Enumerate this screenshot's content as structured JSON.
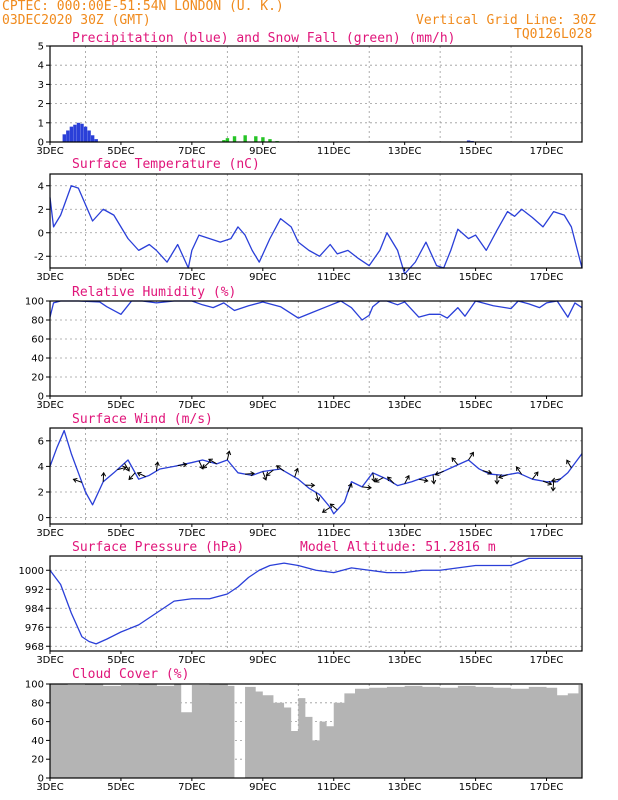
{
  "header": {
    "line1": "CPTEC:   000:00E-51:54N   LONDON (U. K.)",
    "line2": "03DEC2020 30Z (GMT)",
    "grid_note": "Vertical Grid Line: 30Z",
    "code": "TQ0126L028"
  },
  "colors": {
    "header": "#f08a1c",
    "title": "#e0157a",
    "line": "#2a3fd8",
    "snow": "#26c426",
    "cloud": "#b4b4b4"
  },
  "chart_data": [
    {
      "type": "bar",
      "title": "Precipitation (blue) and Snow Fall (green) (mm/h)",
      "x_categories": [
        "3DEC",
        "5DEC",
        "7DEC",
        "9DEC",
        "11DEC",
        "13DEC",
        "15DEC",
        "17DEC"
      ],
      "ylim": [
        0,
        5
      ],
      "yticks": [
        "0",
        "1",
        "2",
        "3",
        "4",
        "5"
      ],
      "grid": true,
      "x": [
        3.4,
        3.5,
        3.6,
        3.7,
        3.8,
        3.9,
        4.0,
        4.1,
        4.2,
        4.3,
        7.9,
        8.0,
        8.2,
        8.5,
        8.8,
        9.0,
        9.2,
        9.4,
        14.8,
        14.9
      ],
      "series": [
        {
          "name": "Precipitation",
          "color": "#2a3fd8",
          "values": [
            0.4,
            0.6,
            0.8,
            0.9,
            1.0,
            0.95,
            0.8,
            0.6,
            0.35,
            0.15,
            0,
            0,
            0,
            0,
            0,
            0,
            0,
            0,
            0.08,
            0.05
          ]
        },
        {
          "name": "Snow Fall",
          "color": "#26c426",
          "values": [
            0,
            0,
            0,
            0,
            0,
            0,
            0,
            0,
            0,
            0,
            0.1,
            0.2,
            0.3,
            0.35,
            0.3,
            0.25,
            0.15,
            0.05,
            0,
            0
          ]
        }
      ]
    },
    {
      "type": "line",
      "title": "Surface Temperature (nC)",
      "x_categories": [
        "3DEC",
        "5DEC",
        "7DEC",
        "9DEC",
        "11DEC",
        "13DEC",
        "15DEC",
        "17DEC"
      ],
      "ylim": [
        -3,
        5
      ],
      "yticks": [
        "-2",
        "0",
        "2",
        "4"
      ],
      "grid": true,
      "series": [
        {
          "x": [
            3.0,
            3.1,
            3.3,
            3.6,
            3.8,
            4.2,
            4.5,
            4.8,
            5.0,
            5.2,
            5.5,
            5.8,
            6.0,
            6.3,
            6.6,
            6.9,
            7.0,
            7.2,
            7.5,
            7.8,
            8.1,
            8.3,
            8.5,
            8.7,
            8.9,
            9.2,
            9.5,
            9.8,
            10.0,
            10.3,
            10.6,
            10.9,
            11.1,
            11.4,
            11.7,
            12.0,
            12.3,
            12.5,
            12.8,
            13.0,
            13.3,
            13.6,
            13.9,
            14.1,
            14.3,
            14.5,
            14.8,
            15.0,
            15.3,
            15.6,
            15.9,
            16.1,
            16.3,
            16.6,
            16.9,
            17.2,
            17.5,
            17.7,
            18.0
          ],
          "y": [
            3.0,
            0.5,
            1.5,
            4.0,
            3.8,
            1.0,
            2.0,
            1.5,
            0.5,
            -0.5,
            -1.5,
            -1.0,
            -1.5,
            -2.5,
            -1.0,
            -3.0,
            -1.5,
            -0.2,
            -0.5,
            -0.8,
            -0.5,
            0.5,
            -0.2,
            -1.5,
            -2.5,
            -0.5,
            1.2,
            0.5,
            -0.8,
            -1.5,
            -2.0,
            -1.0,
            -1.8,
            -1.5,
            -2.2,
            -2.8,
            -1.5,
            0.0,
            -1.5,
            -3.5,
            -2.5,
            -0.8,
            -2.8,
            -3.0,
            -1.5,
            0.3,
            -0.5,
            -0.2,
            -1.5,
            0.2,
            1.8,
            1.4,
            2.0,
            1.3,
            0.5,
            1.8,
            1.5,
            0.5,
            -3.0
          ]
        }
      ]
    },
    {
      "type": "line",
      "title": "Relative Humidity (%)",
      "x_categories": [
        "3DEC",
        "5DEC",
        "7DEC",
        "9DEC",
        "11DEC",
        "13DEC",
        "15DEC",
        "17DEC"
      ],
      "ylim": [
        0,
        100
      ],
      "yticks": [
        "0",
        "20",
        "40",
        "60",
        "80",
        "100"
      ],
      "grid": true,
      "series": [
        {
          "x": [
            3.0,
            3.1,
            3.3,
            3.8,
            4.4,
            4.6,
            5.0,
            5.3,
            5.6,
            6.0,
            6.5,
            7.0,
            7.3,
            7.6,
            7.9,
            8.2,
            8.6,
            9.0,
            9.5,
            10.0,
            10.4,
            10.8,
            11.2,
            11.5,
            11.8,
            12.0,
            12.1,
            12.3,
            12.5,
            12.8,
            13.0,
            13.4,
            13.7,
            14.0,
            14.2,
            14.5,
            14.7,
            15.0,
            15.5,
            16.0,
            16.2,
            16.5,
            16.8,
            17.0,
            17.3,
            17.6,
            17.8,
            18.0
          ],
          "y": [
            83,
            98,
            100,
            100,
            99,
            94,
            86,
            100,
            100,
            98,
            100,
            100,
            96,
            93,
            98,
            90,
            95,
            99,
            94,
            82,
            88,
            94,
            100,
            93,
            80,
            85,
            94,
            100,
            100,
            96,
            99,
            83,
            86,
            86,
            82,
            93,
            84,
            100,
            95,
            92,
            100,
            97,
            93,
            98,
            100,
            83,
            98,
            93
          ]
        }
      ]
    },
    {
      "type": "line",
      "title": "Surface Wind (m/s)",
      "x_categories": [
        "3DEC",
        "5DEC",
        "7DEC",
        "9DEC",
        "11DEC",
        "13DEC",
        "15DEC",
        "17DEC"
      ],
      "ylim": [
        -0.5,
        7
      ],
      "yticks": [
        "0",
        "2",
        "4",
        "6"
      ],
      "grid": true,
      "series": [
        {
          "x": [
            3.0,
            3.2,
            3.4,
            3.6,
            3.8,
            4.0,
            4.2,
            4.5,
            4.8,
            5.0,
            5.2,
            5.5,
            5.8,
            6.1,
            6.5,
            7.0,
            7.3,
            7.7,
            8.0,
            8.3,
            8.7,
            9.0,
            9.5,
            10.0,
            10.3,
            10.6,
            10.9,
            11.0,
            11.3,
            11.5,
            11.8,
            12.1,
            12.5,
            12.8,
            13.2,
            13.6,
            14.0,
            14.4,
            14.8,
            15.1,
            15.4,
            15.8,
            16.2,
            16.6,
            17.0,
            17.3,
            17.6,
            18.0
          ],
          "y": [
            4.0,
            5.5,
            6.8,
            5.0,
            3.5,
            2.0,
            1.0,
            2.8,
            3.5,
            4.0,
            4.5,
            3.0,
            3.3,
            3.8,
            4.0,
            4.3,
            4.5,
            4.2,
            4.5,
            3.5,
            3.3,
            3.6,
            3.8,
            3.0,
            2.3,
            1.8,
            0.8,
            0.3,
            1.2,
            2.8,
            2.4,
            3.5,
            3.0,
            2.5,
            2.8,
            3.2,
            3.5,
            4.0,
            4.5,
            3.8,
            3.4,
            3.3,
            3.5,
            3.0,
            2.8,
            2.8,
            3.5,
            5.0
          ]
        }
      ],
      "arrow_x": [
        3.9,
        4.5,
        4.9,
        5.1,
        5.4,
        5.7,
        6.0,
        6.6,
        7.2,
        7.5,
        7.7,
        8.0,
        8.5,
        9.0,
        9.3,
        9.6,
        9.9,
        10.2,
        10.5,
        10.9,
        11.1,
        11.4,
        11.8,
        12.1,
        12.4,
        12.7,
        13.0,
        13.4,
        13.8,
        14.1,
        14.5,
        14.8,
        15.2,
        15.6,
        15.9,
        16.3,
        16.6,
        16.9,
        17.2,
        17.4,
        17.7
      ]
    },
    {
      "type": "line",
      "title": "Surface Pressure (hPa)",
      "annotation": "Model Altitude: 51.2816 m",
      "x_categories": [
        "3DEC",
        "5DEC",
        "7DEC",
        "9DEC",
        "11DEC",
        "13DEC",
        "15DEC",
        "17DEC"
      ],
      "ylim": [
        966,
        1006
      ],
      "yticks": [
        "968",
        "976",
        "984",
        "992",
        "1000"
      ],
      "grid": true,
      "series": [
        {
          "x": [
            3.0,
            3.3,
            3.6,
            3.9,
            4.1,
            4.3,
            4.6,
            5.0,
            5.5,
            6.0,
            6.5,
            7.0,
            7.5,
            8.0,
            8.3,
            8.6,
            8.9,
            9.2,
            9.6,
            10.0,
            10.5,
            11.0,
            11.5,
            12.0,
            12.5,
            13.0,
            13.5,
            14.0,
            14.5,
            15.0,
            15.5,
            16.0,
            16.5,
            18.0
          ],
          "y": [
            1000,
            994,
            982,
            972,
            970,
            969,
            971,
            974,
            977,
            982,
            987,
            988,
            988,
            990,
            993,
            997,
            1000,
            1002,
            1003,
            1002,
            1000,
            999,
            1001,
            1000,
            999,
            999,
            1000,
            1000,
            1001,
            1002,
            1002,
            1002,
            1005,
            1005
          ]
        }
      ]
    },
    {
      "type": "bar",
      "title": "Cloud Cover (%)",
      "x_categories": [
        "3DEC",
        "5DEC",
        "7DEC",
        "9DEC",
        "11DEC",
        "13DEC",
        "15DEC",
        "17DEC"
      ],
      "ylim": [
        0,
        100
      ],
      "yticks": [
        "0",
        "20",
        "40",
        "60",
        "80",
        "100"
      ],
      "grid": true,
      "x": [
        3.0,
        3.5,
        4.0,
        4.5,
        5.0,
        5.5,
        6.0,
        6.5,
        6.7,
        7.0,
        7.5,
        8.0,
        8.2,
        8.5,
        8.8,
        9.0,
        9.3,
        9.6,
        9.8,
        10.0,
        10.2,
        10.4,
        10.6,
        10.8,
        11.0,
        11.3,
        11.6,
        12.0,
        12.5,
        13.0,
        13.5,
        14.0,
        14.5,
        15.0,
        15.5,
        16.0,
        16.5,
        17.0,
        17.3,
        17.6,
        17.9
      ],
      "values": [
        100,
        99,
        100,
        98,
        99,
        100,
        98,
        100,
        70,
        99,
        100,
        98,
        0,
        97,
        92,
        88,
        80,
        75,
        50,
        85,
        65,
        40,
        60,
        55,
        80,
        90,
        95,
        96,
        97,
        98,
        97,
        96,
        98,
        97,
        96,
        95,
        97,
        96,
        88,
        90,
        99
      ]
    }
  ]
}
